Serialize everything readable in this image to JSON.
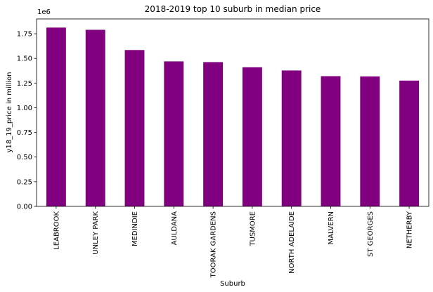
{
  "chart_data": {
    "type": "bar",
    "title": "2018-2019 top 10 suburb in median price",
    "xlabel": "Suburb",
    "ylabel": "y18_19_price in million",
    "offset_label": "1e6",
    "categories": [
      "LEABROOK",
      "UNLEY PARK",
      "MEDINDIE",
      "AULDANA",
      "TOORAK GARDENS",
      "TUSMORE",
      "NORTH ADELAIDE",
      "MALVERN",
      "ST GEORGES",
      "NETHERBY"
    ],
    "values": [
      1812500,
      1790000,
      1585000,
      1470000,
      1462500,
      1410000,
      1377500,
      1320000,
      1317500,
      1275000
    ],
    "ylim": [
      0,
      1900000
    ],
    "yticks": [
      0,
      250000,
      500000,
      750000,
      1000000,
      1250000,
      1500000,
      1750000
    ],
    "ytick_labels": [
      "0.00",
      "0.25",
      "0.50",
      "0.75",
      "1.00",
      "1.25",
      "1.50",
      "1.75"
    ],
    "bar_color": "#800080",
    "grid": false,
    "legend": "none"
  }
}
